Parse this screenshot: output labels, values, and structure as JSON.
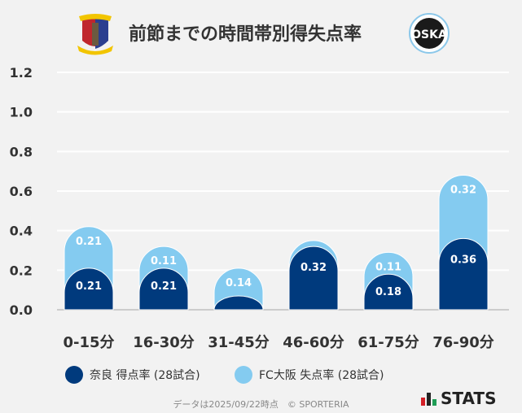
{
  "title": "前節までの時間帯別得失点率",
  "logos": {
    "home": "NARA CLUB",
    "away": "FC OSAKA"
  },
  "chart_data": {
    "type": "bar",
    "stacked": true,
    "categories": [
      "0-15分",
      "16-30分",
      "31-45分",
      "46-60分",
      "61-75分",
      "76-90分"
    ],
    "series": [
      {
        "name": "奈良 得点率 (28試合)",
        "color": "#003a7d",
        "values": [
          0.21,
          0.21,
          0.07,
          0.32,
          0.18,
          0.36
        ],
        "labels": [
          "0.21",
          "0.21",
          "",
          "0.32",
          "0.18",
          "0.36"
        ]
      },
      {
        "name": "FC大阪 失点率 (28試合)",
        "color": "#84cbf0",
        "values": [
          0.21,
          0.11,
          0.14,
          0.03,
          0.11,
          0.32
        ],
        "labels": [
          "0.21",
          "0.11",
          "0.14",
          "",
          "0.11",
          "0.32"
        ]
      }
    ],
    "ylim": [
      0,
      1.2
    ],
    "yticks": [
      "0.0",
      "0.2",
      "0.4",
      "0.6",
      "0.8",
      "1.0",
      "1.2"
    ],
    "grid": true,
    "legend": "bottom"
  },
  "footer": "データは2025/09/22時点　© SPORTERIA",
  "brand": "STATS"
}
